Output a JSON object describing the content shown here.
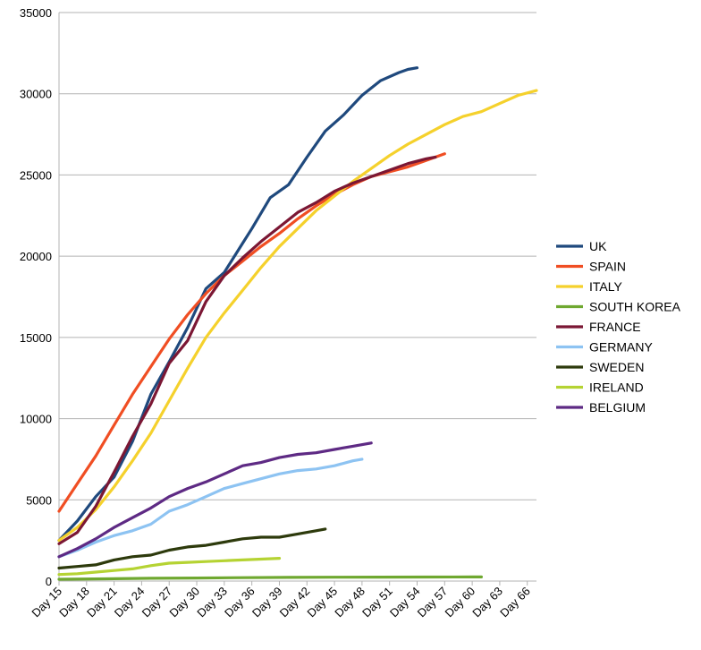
{
  "chart_data": {
    "type": "line",
    "title": "",
    "xlabel": "",
    "ylabel": "",
    "ylim": [
      0,
      35000
    ],
    "yticks": [
      0,
      5000,
      10000,
      15000,
      20000,
      25000,
      30000,
      35000
    ],
    "x_range": [
      15,
      67
    ],
    "xtick_labels": [
      "Day 15",
      "Day 18",
      "Day 21",
      "Day 24",
      "Day 27",
      "Day 30",
      "Day 33",
      "Day 36",
      "Day 39",
      "Day 42",
      "Day 45",
      "Day 48",
      "Day 51",
      "Day 54",
      "Day 57",
      "Day 60",
      "Day 63",
      "Day 66"
    ],
    "grid": true,
    "legend_position": "right",
    "series": [
      {
        "name": "UK",
        "color": "#1F497D",
        "x": [
          15,
          17,
          19,
          21,
          23,
          25,
          27,
          29,
          31,
          33,
          35,
          36,
          38,
          40,
          42,
          44,
          46,
          48,
          50,
          52,
          53,
          54
        ],
        "y": [
          2500,
          3700,
          5200,
          6400,
          8600,
          11500,
          13500,
          15600,
          18000,
          19000,
          20800,
          21700,
          23600,
          24400,
          26100,
          27700,
          28700,
          29900,
          30800,
          31300,
          31500,
          31600
        ]
      },
      {
        "name": "SPAIN",
        "color": "#F04E23",
        "x": [
          15,
          17,
          19,
          21,
          23,
          25,
          27,
          29,
          31,
          33,
          35,
          37,
          39,
          41,
          43,
          45,
          47,
          49,
          51,
          53,
          55,
          57
        ],
        "y": [
          4300,
          6000,
          7700,
          9600,
          11500,
          13200,
          14900,
          16400,
          17700,
          18800,
          19700,
          20600,
          21400,
          22300,
          23100,
          23800,
          24400,
          24900,
          25200,
          25500,
          25900,
          26300
        ]
      },
      {
        "name": "ITALY",
        "color": "#F5D12C",
        "x": [
          15,
          17,
          19,
          21,
          23,
          25,
          27,
          29,
          31,
          33,
          35,
          37,
          39,
          41,
          43,
          45,
          47,
          49,
          51,
          53,
          55,
          57,
          59,
          61,
          63,
          65,
          67
        ],
        "y": [
          2500,
          3300,
          4400,
          5800,
          7400,
          9100,
          11100,
          13100,
          15000,
          16500,
          17900,
          19300,
          20600,
          21700,
          22800,
          23700,
          24600,
          25400,
          26200,
          26900,
          27500,
          28100,
          28600,
          28900,
          29400,
          29900,
          30200
        ]
      },
      {
        "name": "SOUTH KOREA",
        "color": "#6FA830",
        "x": [
          15,
          20,
          25,
          30,
          35,
          40,
          45,
          50,
          55,
          60,
          61
        ],
        "y": [
          110,
          140,
          170,
          190,
          210,
          225,
          235,
          245,
          250,
          255,
          256
        ]
      },
      {
        "name": "FRANCE",
        "color": "#7B1734",
        "x": [
          15,
          17,
          19,
          21,
          23,
          25,
          27,
          29,
          31,
          33,
          35,
          37,
          39,
          41,
          43,
          45,
          47,
          49,
          51,
          53,
          55,
          56
        ],
        "y": [
          2300,
          3000,
          4600,
          6700,
          8900,
          10900,
          13400,
          14800,
          17200,
          18800,
          19900,
          20900,
          21800,
          22700,
          23300,
          24000,
          24500,
          24900,
          25300,
          25700,
          26000,
          26100
        ]
      },
      {
        "name": "GERMANY",
        "color": "#8DC3F2",
        "x": [
          15,
          17,
          19,
          21,
          23,
          25,
          27,
          29,
          31,
          33,
          35,
          37,
          39,
          41,
          43,
          45,
          47,
          48
        ],
        "y": [
          1500,
          1900,
          2400,
          2800,
          3100,
          3500,
          4300,
          4700,
          5200,
          5700,
          6000,
          6300,
          6600,
          6800,
          6900,
          7100,
          7400,
          7500
        ]
      },
      {
        "name": "SWEDEN",
        "color": "#2D3A0C",
        "x": [
          15,
          17,
          19,
          21,
          23,
          25,
          27,
          29,
          31,
          33,
          35,
          37,
          39,
          41,
          43,
          44
        ],
        "y": [
          800,
          900,
          1000,
          1300,
          1500,
          1600,
          1900,
          2100,
          2200,
          2400,
          2600,
          2700,
          2700,
          2900,
          3100,
          3200
        ]
      },
      {
        "name": "IRELAND",
        "color": "#B5D333",
        "x": [
          15,
          17,
          19,
          21,
          23,
          25,
          27,
          29,
          31,
          33,
          35,
          37,
          39
        ],
        "y": [
          400,
          450,
          550,
          650,
          750,
          950,
          1100,
          1150,
          1200,
          1250,
          1300,
          1350,
          1400
        ]
      },
      {
        "name": "BELGIUM",
        "color": "#5E2A84",
        "x": [
          15,
          17,
          19,
          21,
          23,
          25,
          27,
          29,
          31,
          33,
          35,
          37,
          39,
          41,
          43,
          45,
          47,
          49
        ],
        "y": [
          1500,
          2000,
          2600,
          3300,
          3900,
          4500,
          5200,
          5700,
          6100,
          6600,
          7100,
          7300,
          7600,
          7800,
          7900,
          8100,
          8300,
          8500
        ]
      }
    ]
  }
}
